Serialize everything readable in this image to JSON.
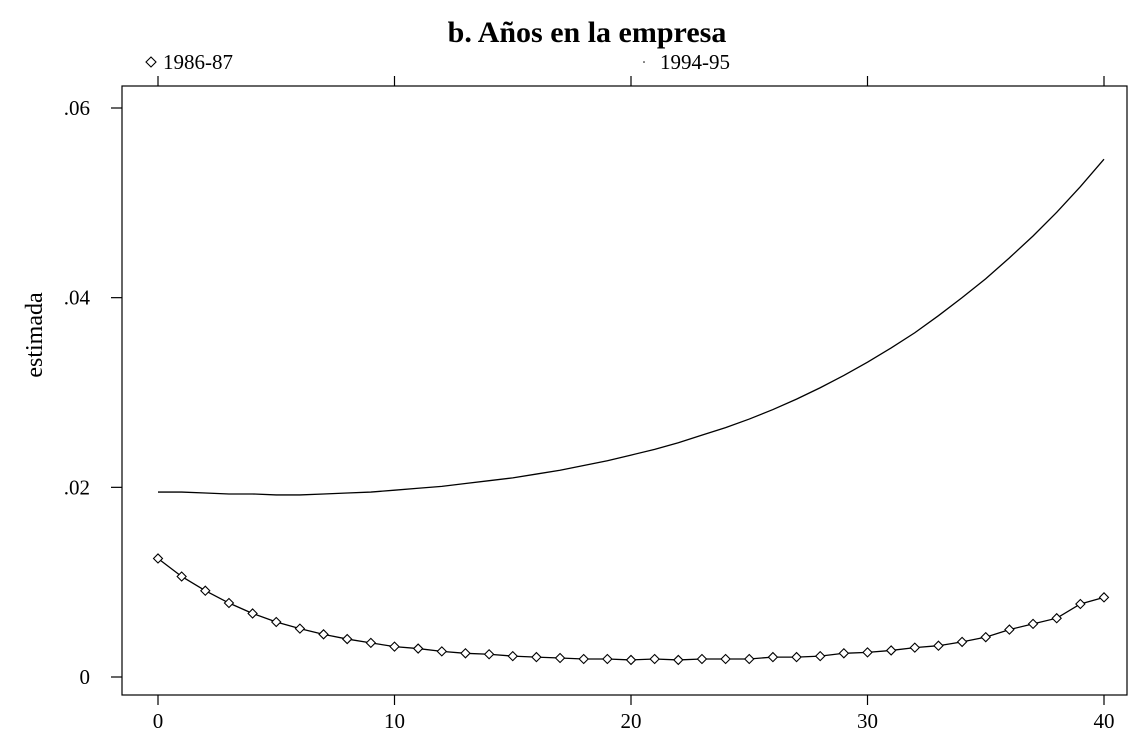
{
  "chart_data": {
    "type": "line",
    "title": "b. Años en la empresa",
    "xlabel": "",
    "ylabel": "estimada",
    "xlim": [
      0,
      40
    ],
    "ylim": [
      0,
      0.06
    ],
    "x_ticks": [
      0,
      10,
      20,
      30,
      40
    ],
    "x_tick_labels": [
      "0",
      "10",
      "20",
      "30",
      "40"
    ],
    "y_ticks": [
      0,
      0.02,
      0.04,
      0.06
    ],
    "y_tick_labels": [
      "0",
      ".02",
      ".04",
      ".06"
    ],
    "grid": false,
    "legend_position": "top",
    "x": [
      0,
      1,
      2,
      3,
      4,
      5,
      6,
      7,
      8,
      9,
      10,
      11,
      12,
      13,
      14,
      15,
      16,
      17,
      18,
      19,
      20,
      21,
      22,
      23,
      24,
      25,
      26,
      27,
      28,
      29,
      30,
      31,
      32,
      33,
      34,
      35,
      36,
      37,
      38,
      39,
      40
    ],
    "series": [
      {
        "name": "1986-87",
        "marker": "diamond",
        "values": [
          0.0125,
          0.0106,
          0.0091,
          0.0078,
          0.0067,
          0.0058,
          0.0051,
          0.0045,
          0.004,
          0.0036,
          0.0032,
          0.003,
          0.0027,
          0.0025,
          0.0024,
          0.0022,
          0.0021,
          0.002,
          0.0019,
          0.0019,
          0.0018,
          0.0019,
          0.0018,
          0.0019,
          0.0019,
          0.0019,
          0.0021,
          0.0021,
          0.0022,
          0.0025,
          0.0026,
          0.0028,
          0.0031,
          0.0033,
          0.0037,
          0.0042,
          0.005,
          0.0056,
          0.0062,
          0.0077,
          0.0084
        ]
      },
      {
        "name": "1994-95",
        "marker": "none",
        "values": [
          0.0195,
          0.0195,
          0.0194,
          0.0193,
          0.0193,
          0.0192,
          0.0192,
          0.0193,
          0.0194,
          0.0195,
          0.0197,
          0.0199,
          0.0201,
          0.0204,
          0.0207,
          0.021,
          0.0214,
          0.0218,
          0.0223,
          0.0228,
          0.0234,
          0.024,
          0.0247,
          0.0255,
          0.0263,
          0.0272,
          0.0282,
          0.0293,
          0.0305,
          0.0318,
          0.0332,
          0.0347,
          0.0363,
          0.0381,
          0.04,
          0.042,
          0.0442,
          0.0465,
          0.049,
          0.0517,
          0.0546
        ]
      }
    ]
  }
}
